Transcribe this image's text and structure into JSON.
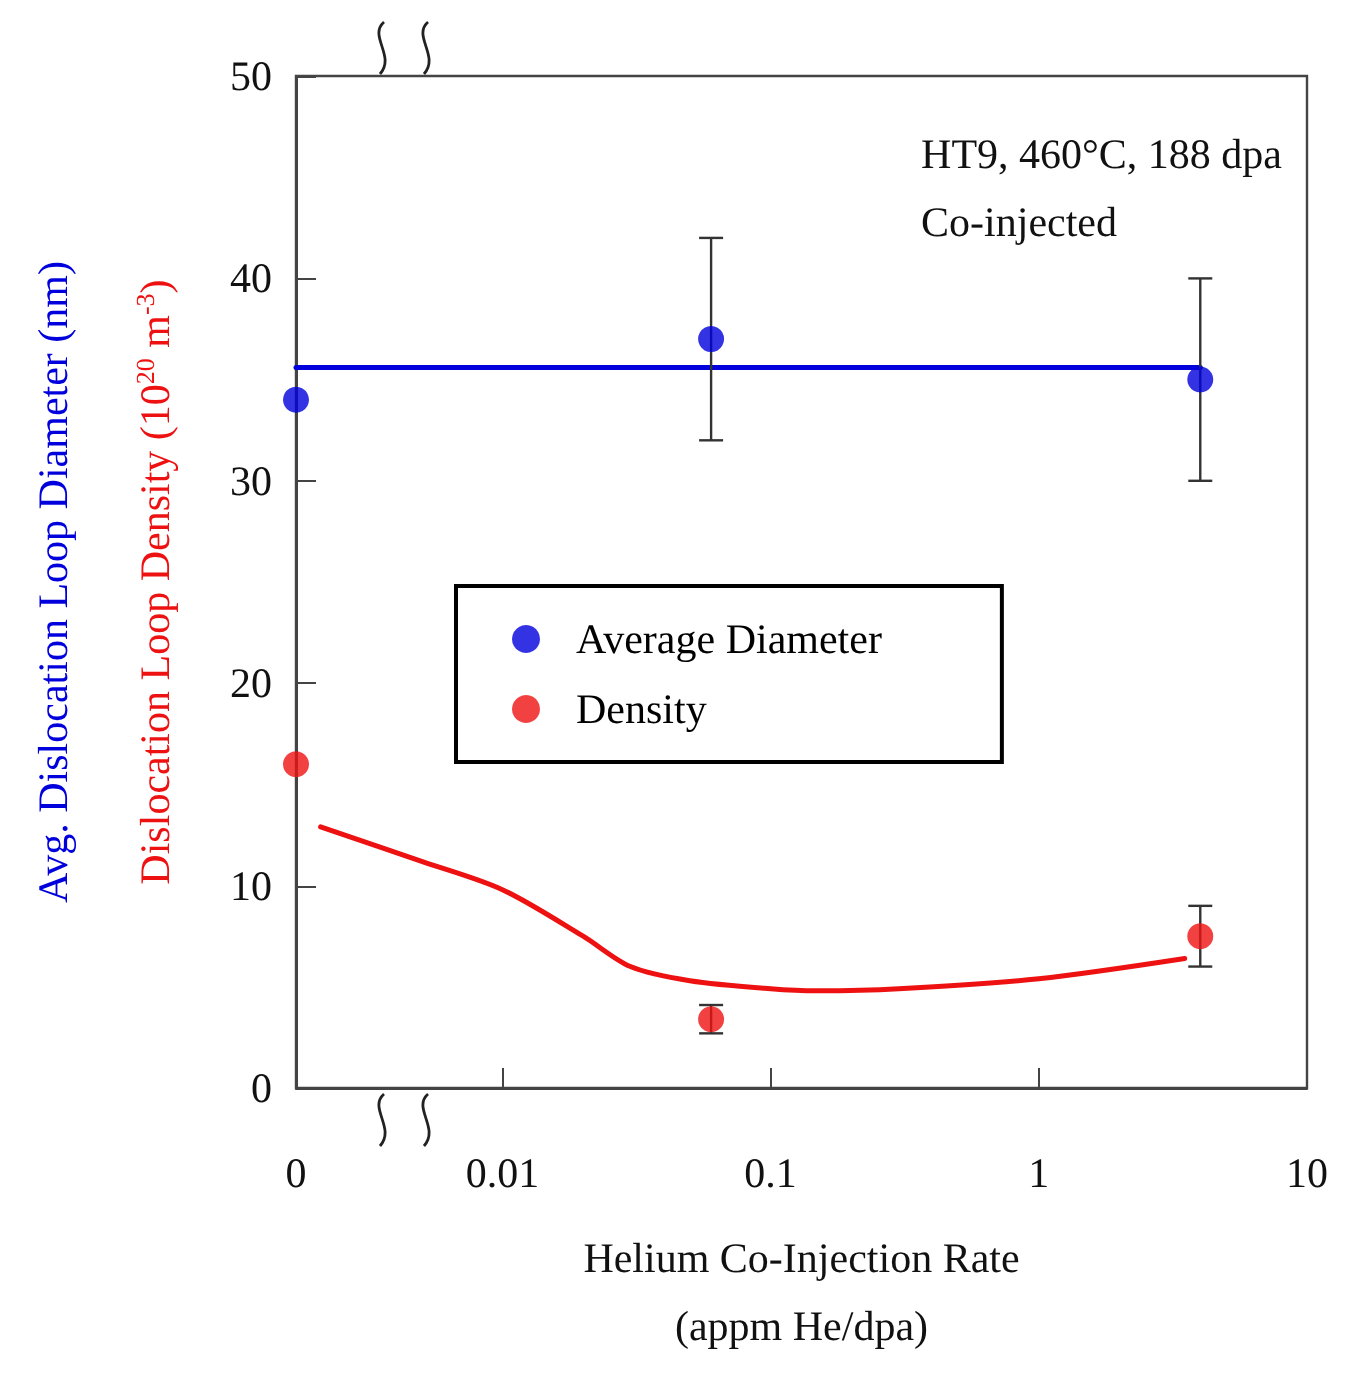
{
  "chart_data": {
    "type": "scatter",
    "xlabel": "Helium Co-Injection Rate\n(appm He/dpa)",
    "ylabel": "Avg. Dislocation Loop Diameter (nm)",
    "y2label": "Dislocation Loop Density (10$^{20}$ m$^{-3}$)",
    "annotations": [
      "HT9, 460°C, 188 dpa",
      "Co-injected"
    ],
    "log": "x",
    "xlim": [
      0.0017,
      10
    ],
    "xticks": [
      {
        "value": 0.0017,
        "label": "0"
      },
      0.01,
      0.1,
      1,
      10
    ],
    "ylim": [
      0,
      50
    ],
    "yticks": [
      0,
      10,
      20,
      30,
      40,
      50
    ],
    "grid": false,
    "legend": "left",
    "series": [
      {
        "name": "Average Diameter",
        "color": "#0000dd",
        "x": [
          0.0017,
          0.06,
          4
        ],
        "values": [
          34,
          37,
          35
        ],
        "marker": "circle",
        "errors": [
          null,
          5,
          5
        ]
      },
      {
        "name": "Density",
        "color": "#ee1111",
        "x": [
          0.0017,
          0.06,
          4
        ],
        "values": [
          16,
          3.4,
          7.5
        ],
        "marker": "circle",
        "errors": [
          null,
          0.7,
          1.5
        ]
      },
      {
        "type": "line",
        "color": "#0000dd",
        "x": [
          0.0017,
          4
        ],
        "values": [
          35.6,
          35.6
        ]
      },
      {
        "type": "line",
        "color": "#ee1111",
        "x": [
          0.0021,
          0.005,
          0.01,
          0.02,
          0.03,
          0.05,
          0.1,
          0.15,
          0.3,
          1,
          3.5
        ],
        "values": [
          12.9,
          11.2,
          9.8,
          7.5,
          6.0,
          5.3,
          4.9,
          4.8,
          4.9,
          5.4,
          6.4
        ]
      }
    ]
  }
}
